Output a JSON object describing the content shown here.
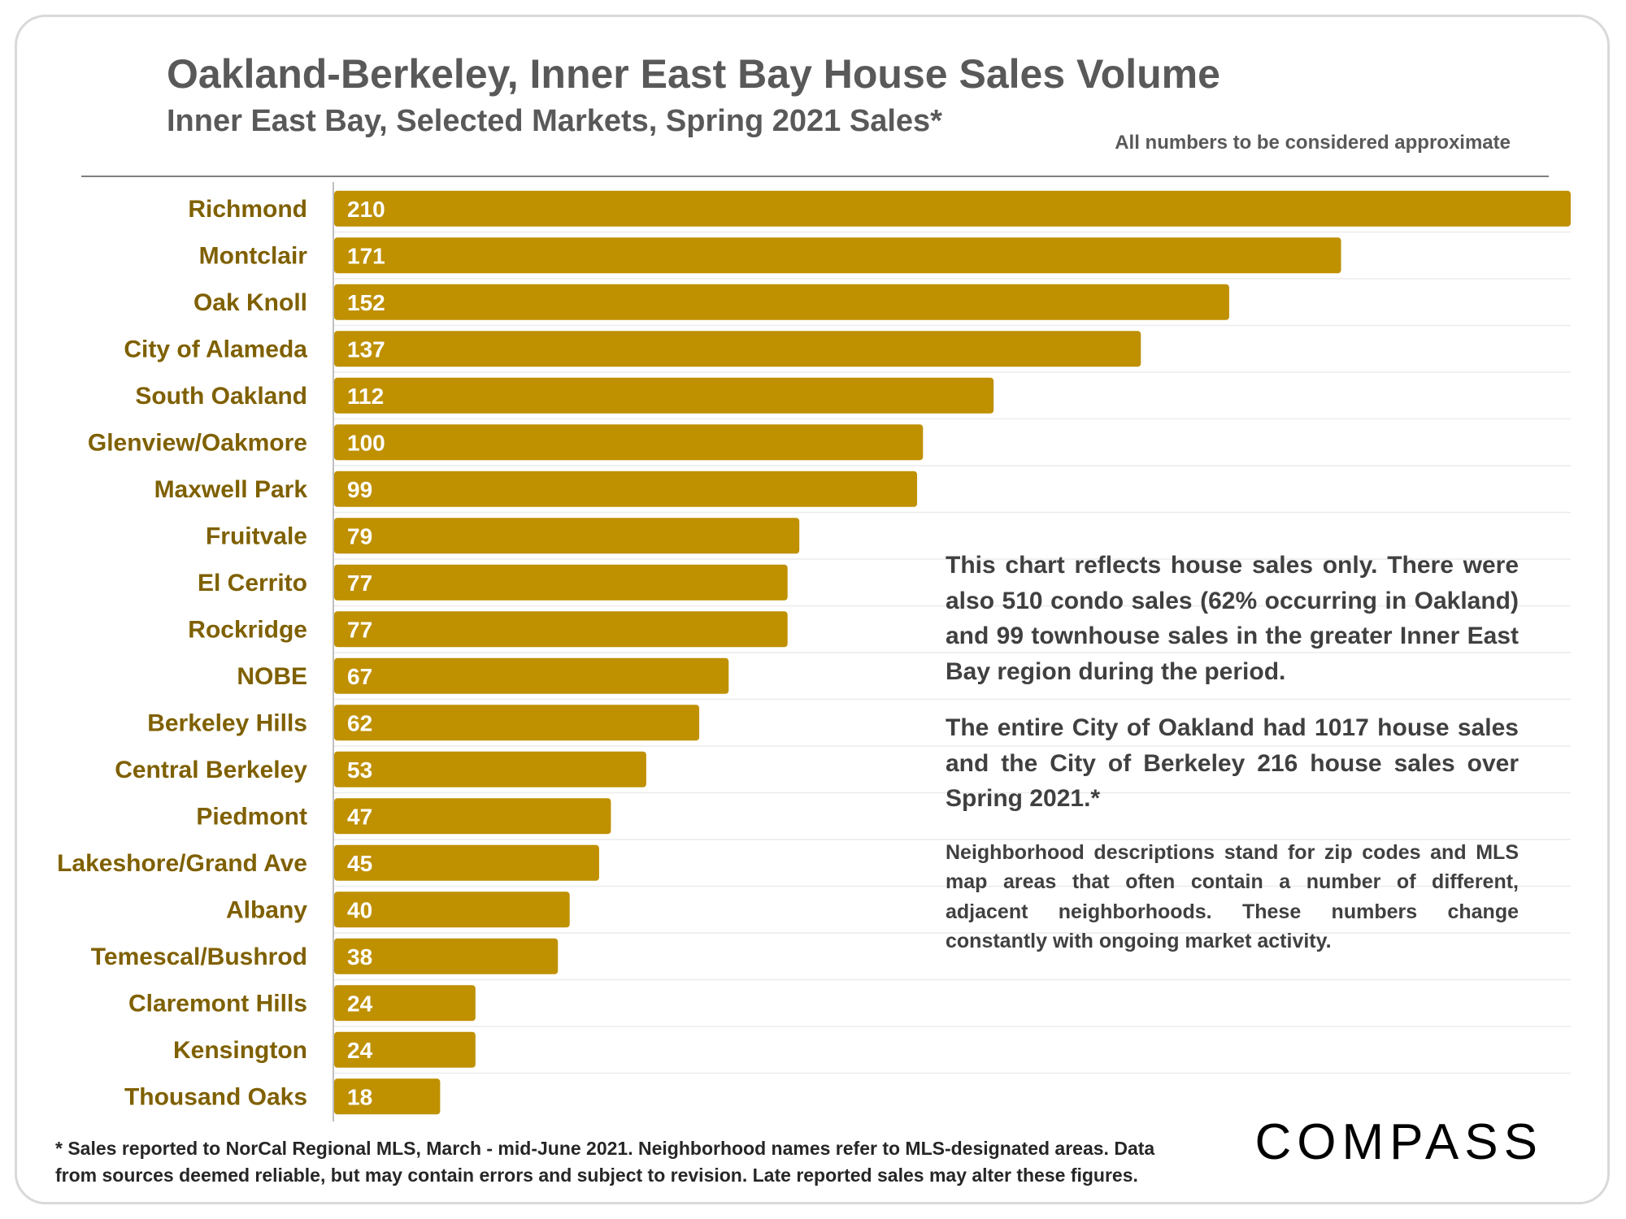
{
  "header": {
    "title": "Oakland-Berkeley, Inner East Bay House Sales Volume",
    "subtitle": "Inner East Bay, Selected Markets, Spring 2021 Sales*",
    "approx_note": "All numbers to be considered approximate"
  },
  "notes": {
    "paragraph1": "This chart reflects house sales only. There were also 510 condo sales (62% occurring in Oakland) and 99 townhouse sales in the greater Inner East Bay region during the period.",
    "paragraph2": "The entire City of Oakland had 1017 house sales and the City of Berkeley 216 house sales over Spring 2021.*",
    "paragraph3": "Neighborhood descriptions stand for zip codes and MLS map areas that often contain a number of different, adjacent neighborhoods. These numbers change constantly with ongoing market activity."
  },
  "footnote": {
    "line1": "* Sales reported to NorCal Regional MLS, March - mid-June 2021. Neighborhood names refer to MLS-designated areas. Data",
    "line2": "from sources deemed reliable, but may contain errors and subject to revision. Late reported sales may alter these figures."
  },
  "logo": {
    "text": "COMPASS"
  },
  "colors": {
    "bar": "#bf9000",
    "category_label": "#7f6000",
    "value_label": "#ffffff",
    "text_gray": "#595959"
  },
  "chart_data": {
    "type": "bar",
    "orientation": "horizontal",
    "categories": [
      "Richmond",
      "Montclair",
      "Oak Knoll",
      "City of Alameda",
      "South Oakland",
      "Glenview/Oakmore",
      "Maxwell Park",
      "Fruitvale",
      "El Cerrito",
      "Rockridge",
      "NOBE",
      "Berkeley Hills",
      "Central Berkeley",
      "Piedmont",
      "Lakeshore/Grand Ave",
      "Albany",
      "Temescal/Bushrod",
      "Claremont Hills",
      "Kensington",
      "Thousand Oaks"
    ],
    "values": [
      210,
      171,
      152,
      137,
      112,
      100,
      99,
      79,
      77,
      77,
      67,
      62,
      53,
      47,
      45,
      40,
      38,
      24,
      24,
      18
    ],
    "title": "Oakland-Berkeley, Inner East Bay House Sales Volume",
    "xlim": [
      0,
      210
    ],
    "data_labels": "inside-base",
    "legend": "none",
    "grid": true
  }
}
